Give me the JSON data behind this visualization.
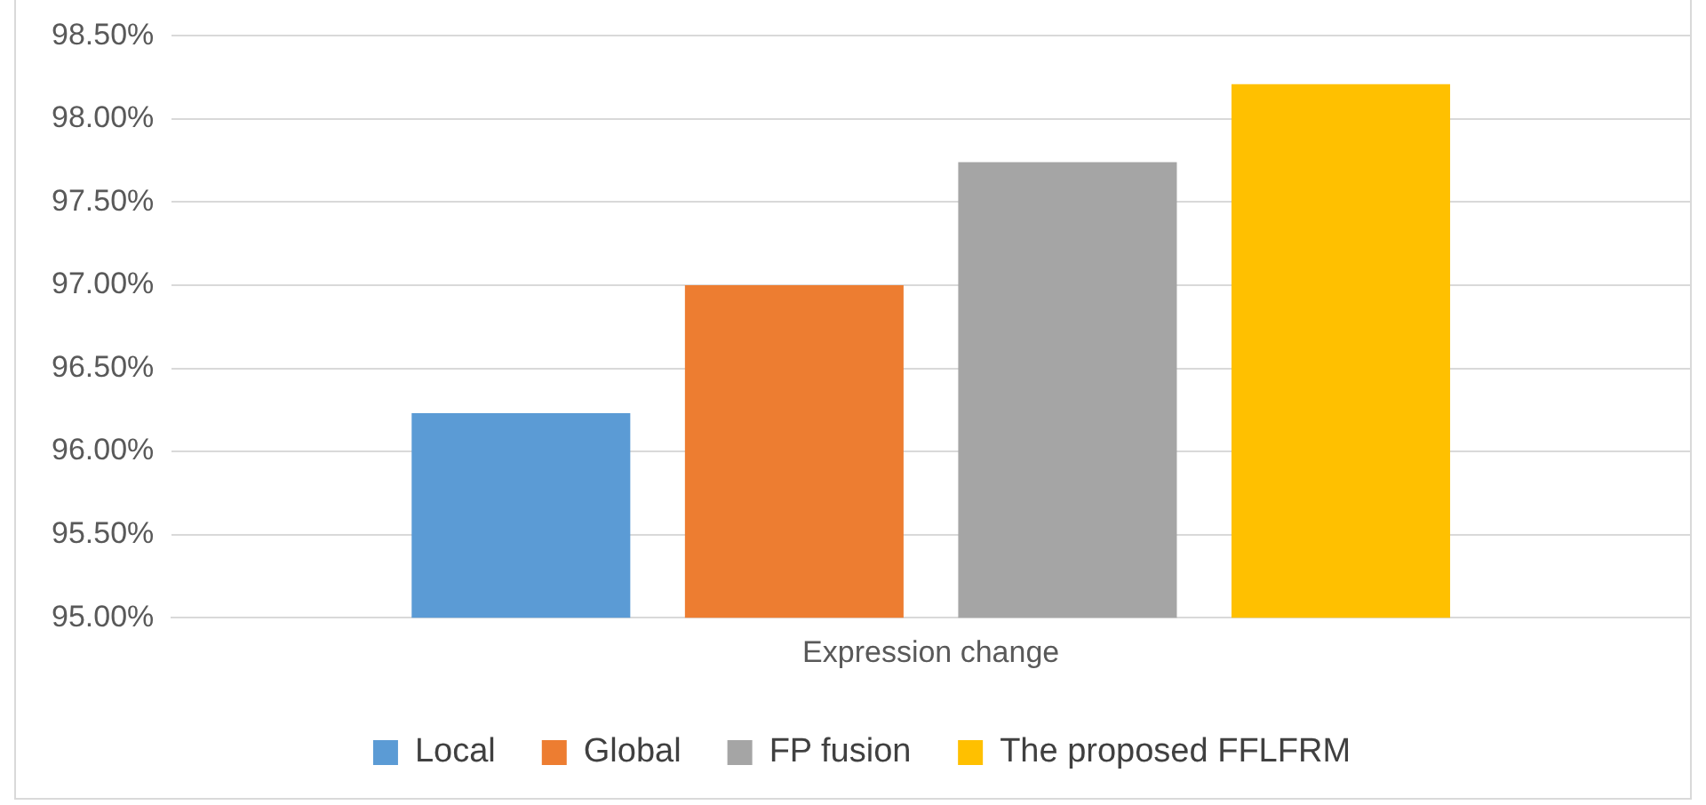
{
  "chart_data": {
    "type": "bar",
    "categories": [
      "Expression change"
    ],
    "series": [
      {
        "name": "Local",
        "color": "#5b9bd5",
        "values": [
          96.23
        ]
      },
      {
        "name": "Global",
        "color": "#ed7d31",
        "values": [
          97.0
        ]
      },
      {
        "name": "FP fusion",
        "color": "#a5a5a5",
        "values": [
          97.74
        ]
      },
      {
        "name": "The proposed FFLFRM",
        "color": "#ffc000",
        "values": [
          98.21
        ]
      }
    ],
    "ylim": [
      95,
      98.5
    ],
    "yticks": [
      {
        "value": 95,
        "label": "95.00%"
      },
      {
        "value": 95.5,
        "label": "95.50%"
      },
      {
        "value": 96,
        "label": "96.00%"
      },
      {
        "value": 96.5,
        "label": "96.50%"
      },
      {
        "value": 97,
        "label": "97.00%"
      },
      {
        "value": 97.5,
        "label": "97.50%"
      },
      {
        "value": 98,
        "label": "98.00%"
      },
      {
        "value": 98.5,
        "label": "98.50%"
      }
    ],
    "grid": "y",
    "legend": "bottom"
  }
}
